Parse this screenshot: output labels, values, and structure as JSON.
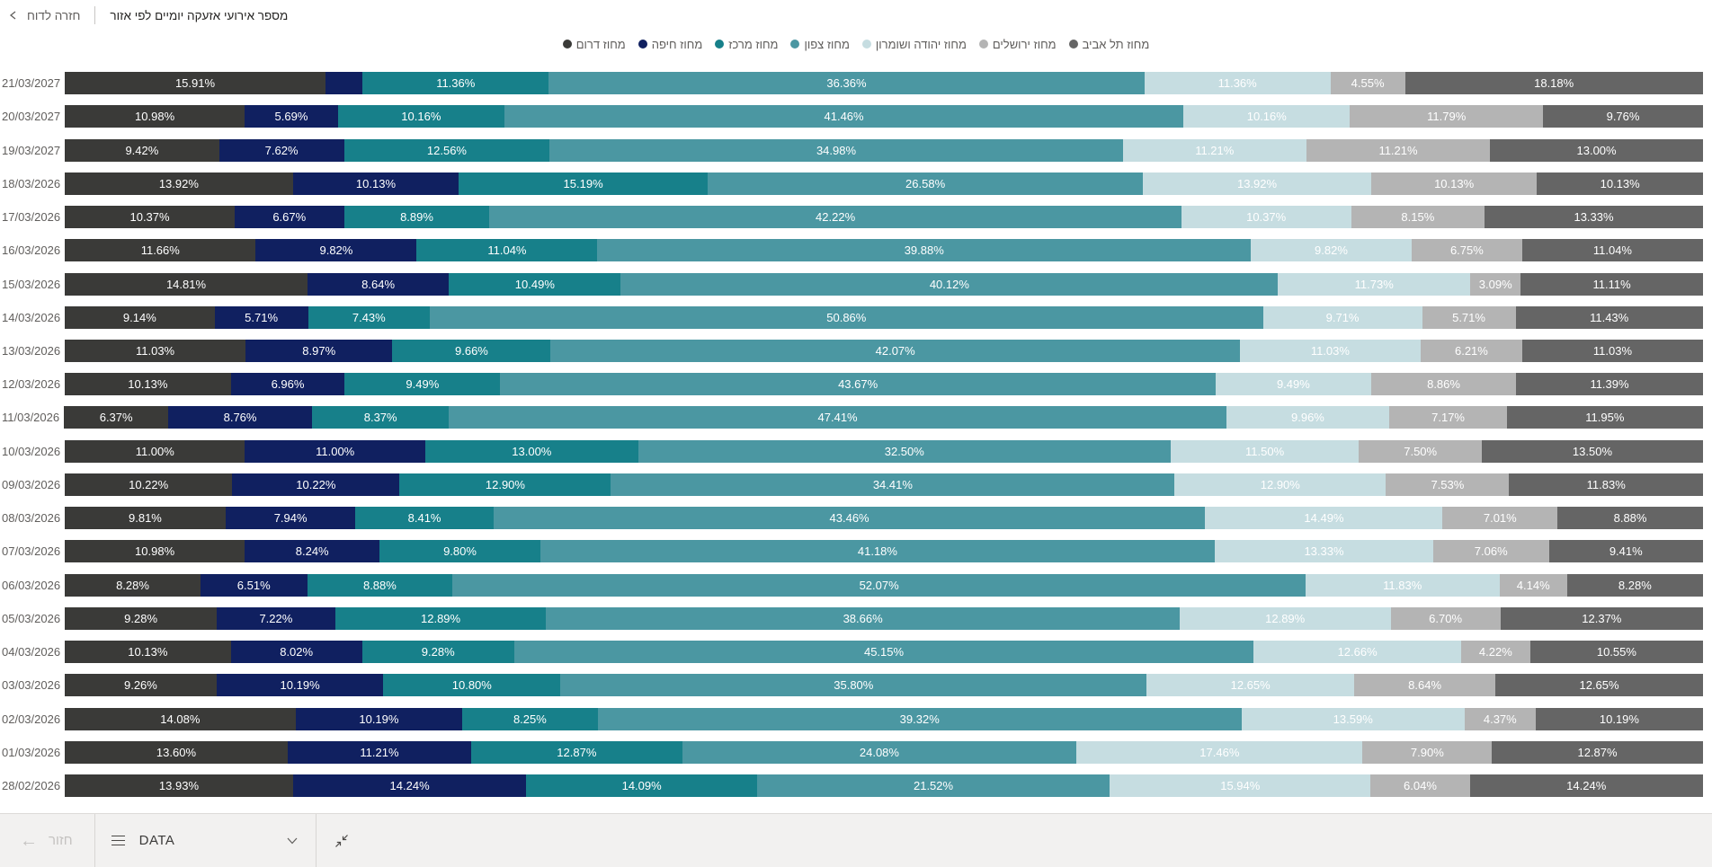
{
  "header": {
    "back_label": "חזרה לדוח",
    "title": "מספר אירועי אזעקה יומיים לפי אזור"
  },
  "toolbar": {
    "back_label": "חזור",
    "data_label": "DATA"
  },
  "chart_data": {
    "type": "bar",
    "subtype": "horizontal-100pct-stacked",
    "title": "מספר אירועי אזעקה יומיים לפי אזור",
    "value_format": "percent-2-decimals",
    "label_min_pct": 3,
    "legend_position": "top-center",
    "categories": [
      "21/03/2027",
      "20/03/2027",
      "19/03/2027",
      "18/03/2026",
      "17/03/2026",
      "16/03/2026",
      "15/03/2026",
      "14/03/2026",
      "13/03/2026",
      "12/03/2026",
      "11/03/2026",
      "10/03/2026",
      "09/03/2026",
      "08/03/2026",
      "07/03/2026",
      "06/03/2026",
      "05/03/2026",
      "04/03/2026",
      "03/03/2026",
      "02/03/2026",
      "01/03/2026",
      "28/02/2026"
    ],
    "series": [
      {
        "name": "מחוז דרום",
        "color": "#3a3a38",
        "values": [
          15.91,
          10.98,
          9.42,
          13.92,
          10.37,
          11.66,
          14.81,
          9.14,
          11.03,
          10.13,
          6.37,
          11.0,
          10.22,
          9.81,
          10.98,
          8.28,
          9.28,
          10.13,
          9.26,
          14.08,
          13.6,
          13.93
        ]
      },
      {
        "name": "מחוז חיפה",
        "color": "#102060",
        "values": [
          2.27,
          5.69,
          7.62,
          10.13,
          6.67,
          9.82,
          8.64,
          5.71,
          8.97,
          6.96,
          8.76,
          11.0,
          10.22,
          7.94,
          8.24,
          6.51,
          7.22,
          8.02,
          10.19,
          10.19,
          11.21,
          14.24
        ]
      },
      {
        "name": "מחוז מרכז",
        "color": "#17808a",
        "values": [
          11.36,
          10.16,
          12.56,
          15.19,
          8.89,
          11.04,
          10.49,
          7.43,
          9.66,
          9.49,
          8.37,
          13.0,
          12.9,
          8.41,
          9.8,
          8.88,
          12.89,
          9.28,
          10.8,
          8.25,
          12.87,
          14.09
        ]
      },
      {
        "name": "מחוז צפון",
        "color": "#4b97a2",
        "values": [
          36.36,
          41.46,
          34.98,
          26.58,
          42.22,
          39.88,
          40.12,
          50.86,
          42.07,
          43.67,
          47.41,
          32.5,
          34.41,
          43.46,
          41.18,
          52.07,
          38.66,
          45.15,
          35.8,
          39.32,
          24.08,
          21.52
        ]
      },
      {
        "name": "מחוז יהודה ושומרון",
        "color": "#c6dde1",
        "values": [
          11.36,
          10.16,
          11.21,
          13.92,
          10.37,
          9.82,
          11.73,
          9.71,
          11.03,
          9.49,
          9.96,
          11.5,
          12.9,
          14.49,
          13.33,
          11.83,
          12.89,
          12.66,
          12.65,
          13.59,
          17.46,
          15.94
        ]
      },
      {
        "name": "מחוז ירושלים",
        "color": "#b4b4b4",
        "values": [
          4.55,
          11.79,
          11.21,
          10.13,
          8.15,
          6.75,
          3.09,
          5.71,
          6.21,
          8.86,
          7.17,
          7.5,
          7.53,
          7.01,
          7.06,
          4.14,
          6.7,
          4.22,
          8.64,
          4.37,
          7.9,
          6.04
        ]
      },
      {
        "name": "מחוז תל אביב",
        "color": "#656565",
        "values": [
          18.18,
          9.76,
          13.0,
          10.13,
          13.33,
          11.04,
          11.11,
          11.43,
          11.03,
          11.39,
          11.95,
          13.5,
          11.83,
          8.88,
          9.41,
          8.28,
          12.37,
          10.55,
          12.65,
          10.19,
          12.87,
          14.24
        ]
      }
    ]
  }
}
